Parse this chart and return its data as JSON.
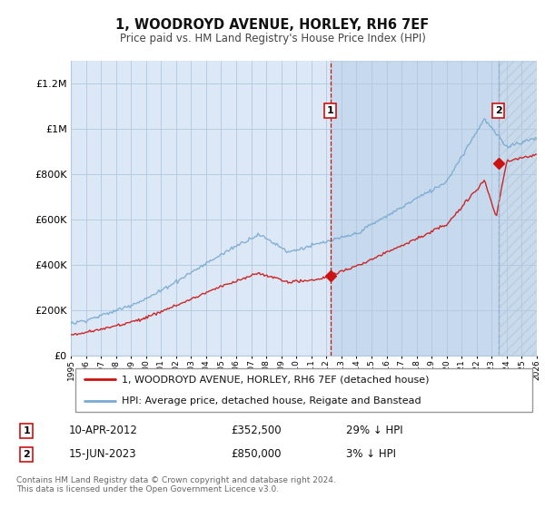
{
  "title": "1, WOODROYD AVENUE, HORLEY, RH6 7EF",
  "subtitle": "Price paid vs. HM Land Registry's House Price Index (HPI)",
  "property_label": "1, WOODROYD AVENUE, HORLEY, RH6 7EF (detached house)",
  "hpi_label": "HPI: Average price, detached house, Reigate and Banstead",
  "annotation1_date": "10-APR-2012",
  "annotation1_price": "£352,500",
  "annotation1_hpi": "29% ↓ HPI",
  "annotation2_date": "15-JUN-2023",
  "annotation2_price": "£850,000",
  "annotation2_hpi": "3% ↓ HPI",
  "footer": "Contains HM Land Registry data © Crown copyright and database right 2024.\nThis data is licensed under the Open Government Licence v3.0.",
  "property_color": "#cc1111",
  "hpi_color": "#7aaad0",
  "background_color": "#ffffff",
  "plot_bg_color": "#dce8f5",
  "grid_color": "#b0c8e0",
  "annotation1_line_color": "#cc1111",
  "annotation2_line_color": "#9ab0cc",
  "ylim_max": 1300000,
  "marker1_year": 2012.27,
  "marker1_value": 352500,
  "marker2_year": 2023.45,
  "marker2_value": 850000,
  "start_year": 1995,
  "end_year": 2026,
  "label_box_edge": "#cc1111"
}
